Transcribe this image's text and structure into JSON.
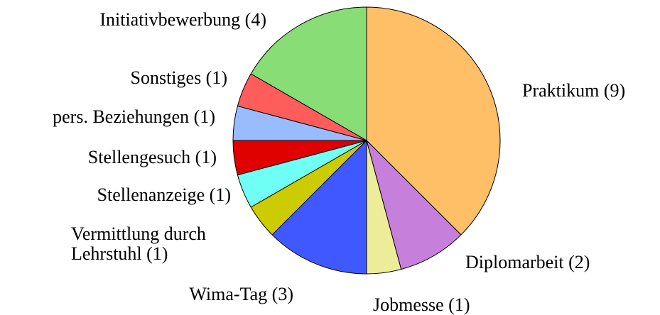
{
  "chart_data": {
    "type": "pie",
    "categories": [
      "Praktikum (9)",
      "Diplomarbeit (2)",
      "Jobmesse (1)",
      "Wima-Tag (3)",
      "Vermittlung durch Lehrstuhl (1)",
      "Stellenanzeige (1)",
      "Stellengesuch (1)",
      "pers. Beziehungen (1)",
      "Sonstiges (1)",
      "Initiativbewerbung (4)"
    ],
    "values": [
      9,
      2,
      1,
      3,
      1,
      1,
      1,
      1,
      1,
      4
    ],
    "colors": [
      "#ffbf66",
      "#c77fdc",
      "#eded99",
      "#4058ff",
      "#cccc00",
      "#70fff4",
      "#e00000",
      "#99bbff",
      "#ff5c5c",
      "#88dd77"
    ]
  }
}
